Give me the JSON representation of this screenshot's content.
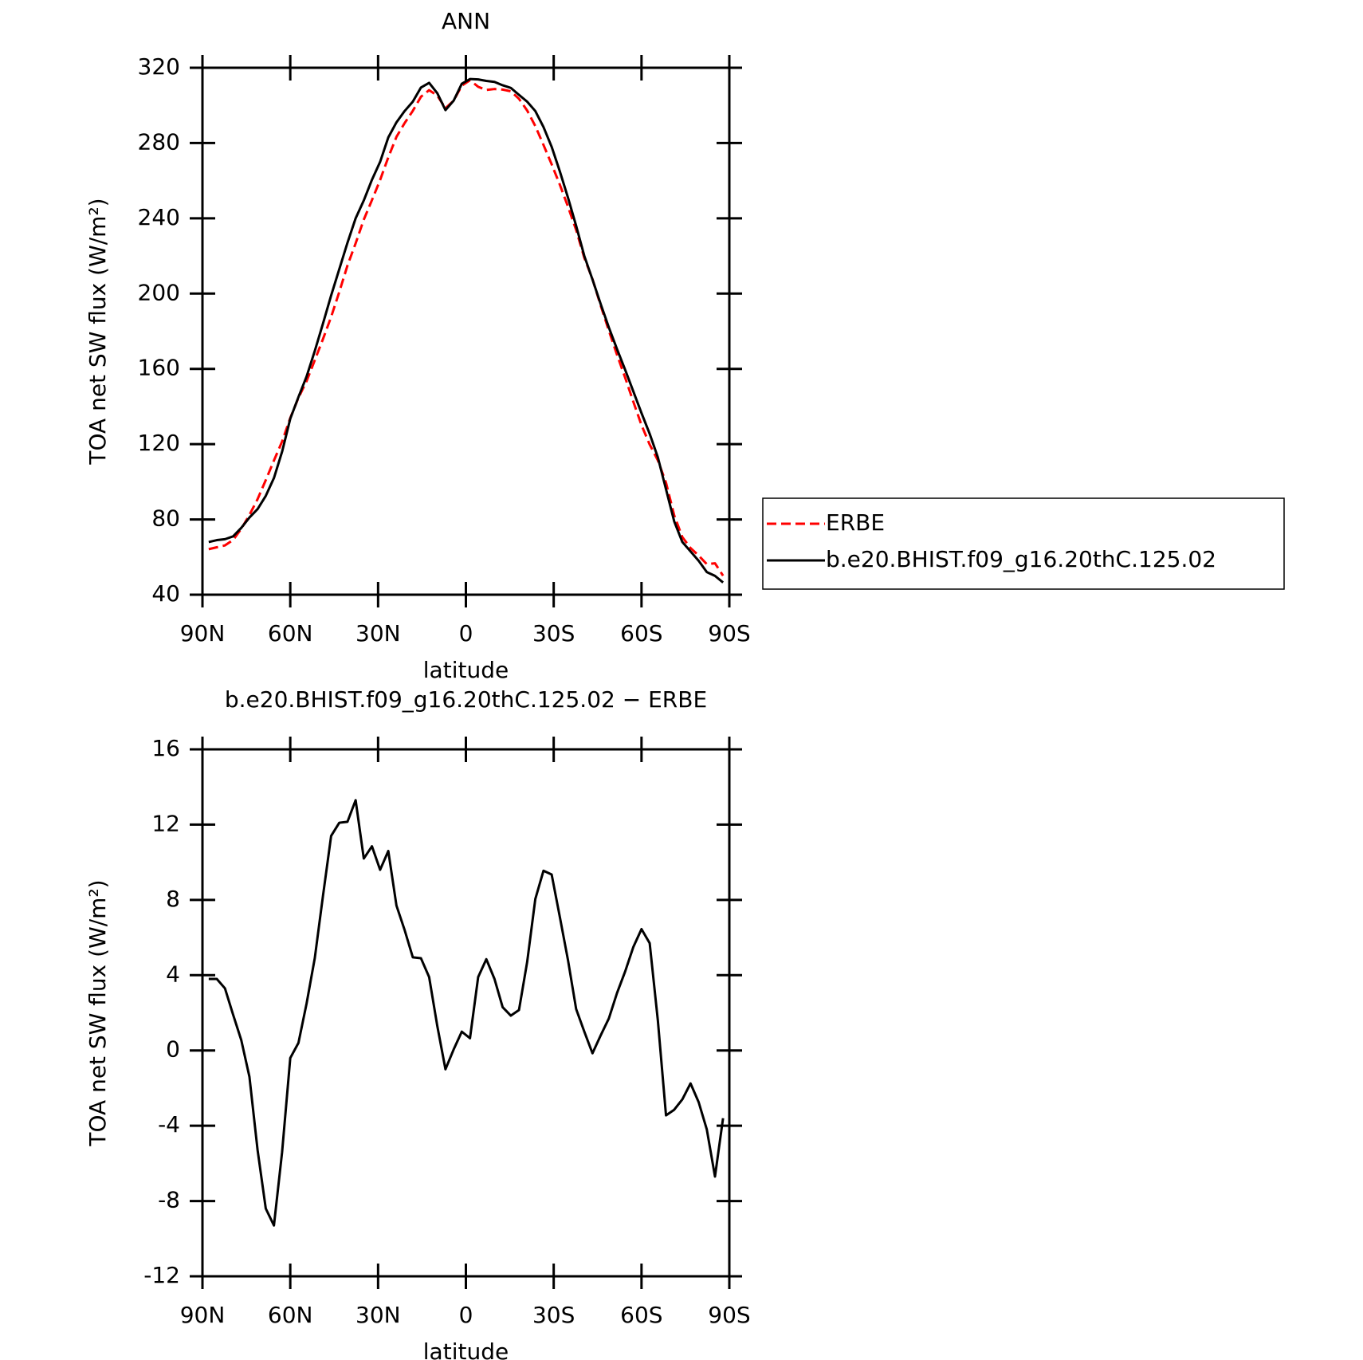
{
  "chart_data": [
    {
      "type": "line",
      "title": "ANN",
      "xlabel": "latitude",
      "ylabel": "TOA net SW flux (W/m²)",
      "x": [
        87.86,
        85.1,
        82.31,
        79.53,
        76.74,
        73.95,
        71.16,
        68.37,
        65.58,
        62.79,
        60,
        57.21,
        54.42,
        51.63,
        48.84,
        46.04,
        43.25,
        40.46,
        37.67,
        34.88,
        32.09,
        29.3,
        26.51,
        23.72,
        20.93,
        18.14,
        15.35,
        12.56,
        9.77,
        6.98,
        4.19,
        1.4,
        -1.4,
        -4.19,
        -6.98,
        -9.77,
        -12.56,
        -15.35,
        -18.14,
        -20.93,
        -23.72,
        -26.51,
        -29.3,
        -32.09,
        -34.88,
        -37.67,
        -40.46,
        -43.25,
        -46.04,
        -48.84,
        -51.63,
        -54.42,
        -57.21,
        -60,
        -62.79,
        -65.58,
        -68.37,
        -71.16,
        -73.95,
        -76.74,
        -79.53,
        -82.31,
        -85.1,
        -87.86
      ],
      "series": [
        {
          "name": "ERBE",
          "color": "#ff0000",
          "dash": "dashed",
          "values": [
            64.2,
            65.2,
            66.2,
            69.1,
            75,
            82.4,
            90.8,
            100.9,
            111.3,
            121.4,
            133.9,
            144.6,
            153.5,
            164.6,
            175.8,
            187.6,
            200.9,
            214.9,
            226.7,
            239.3,
            249.7,
            260.4,
            272.4,
            283.3,
            290.6,
            297.1,
            304.6,
            308.1,
            305.2,
            298.5,
            302.5,
            310.5,
            313.4,
            309.9,
            308.2,
            308.7,
            308.4,
            307.5,
            303.5,
            297.3,
            289,
            279,
            268.7,
            257.9,
            246.2,
            233.8,
            219,
            207.7,
            193.7,
            180.3,
            167.5,
            155.3,
            142.5,
            130.1,
            119.8,
            111.4,
            99.5,
            82.2,
            70.6,
            64.8,
            60.8,
            56.2,
            56.7,
            50.1
          ]
        },
        {
          "name": "b.e20.BHIST.f09_g16.20thC.125.02",
          "color": "#000000",
          "dash": "solid",
          "values": [
            68,
            69,
            69.5,
            71,
            75.5,
            81,
            85.5,
            92.5,
            102,
            116,
            133.5,
            145,
            156,
            169.5,
            184,
            199,
            213,
            227,
            240,
            249.5,
            260.5,
            270,
            283,
            291,
            297,
            302,
            309.5,
            312,
            306.5,
            297.5,
            302.5,
            311.5,
            314,
            313.8,
            313,
            312.5,
            310.7,
            309.3,
            305.6,
            302,
            297,
            288.5,
            278,
            265,
            251,
            236,
            220,
            207.5,
            194.5,
            182,
            170.5,
            159.5,
            148,
            136.5,
            125.5,
            113,
            96,
            79,
            68,
            63,
            58,
            52,
            50,
            46.5
          ]
        }
      ],
      "xlim": [
        90,
        -90
      ],
      "xticks": [
        {
          "value": 90,
          "label": "90N"
        },
        {
          "value": 60,
          "label": "60N"
        },
        {
          "value": 30,
          "label": "30N"
        },
        0,
        {
          "value": -30,
          "label": "30S"
        },
        {
          "value": -60,
          "label": "60S"
        },
        {
          "value": -90,
          "label": "90S"
        }
      ],
      "ylim": [
        40,
        320
      ],
      "yticks": [
        40,
        80,
        120,
        160,
        200,
        240,
        280,
        320
      ],
      "grid": false,
      "legend": "right"
    },
    {
      "type": "line",
      "title": "b.e20.BHIST.f09_g16.20thC.125.02 − ERBE",
      "xlabel": "latitude",
      "ylabel": "TOA net SW flux (W/m²)",
      "x": [
        87.86,
        85.1,
        82.31,
        79.53,
        76.74,
        73.95,
        71.16,
        68.37,
        65.58,
        62.79,
        60,
        57.21,
        54.42,
        51.63,
        48.84,
        46.04,
        43.25,
        40.46,
        37.67,
        34.88,
        32.09,
        29.3,
        26.51,
        23.72,
        20.93,
        18.14,
        15.35,
        12.56,
        9.77,
        6.98,
        4.19,
        1.4,
        -1.4,
        -4.19,
        -6.98,
        -9.77,
        -12.56,
        -15.35,
        -18.14,
        -20.93,
        -23.72,
        -26.51,
        -29.3,
        -32.09,
        -34.88,
        -37.67,
        -40.46,
        -43.25,
        -46.04,
        -48.84,
        -51.63,
        -54.42,
        -57.21,
        -60,
        -62.79,
        -65.58,
        -68.37,
        -71.16,
        -73.95,
        -76.74,
        -79.53,
        -82.31,
        -85.1,
        -87.86
      ],
      "series": [
        {
          "color": "#000000",
          "dash": "solid",
          "values": [
            3.8,
            3.8,
            3.3,
            1.9,
            0.55,
            -1.4,
            -5.3,
            -8.4,
            -9.3,
            -5.4,
            -0.4,
            0.4,
            2.5,
            4.9,
            8.2,
            11.4,
            12.1,
            12.15,
            13.3,
            10.2,
            10.85,
            9.6,
            10.6,
            7.7,
            6.4,
            4.95,
            4.9,
            3.9,
            1.3,
            -1,
            0.05,
            1,
            0.65,
            3.9,
            4.85,
            3.8,
            2.3,
            1.85,
            2.15,
            4.7,
            8.05,
            9.55,
            9.35,
            7.1,
            4.8,
            2.2,
            1,
            -0.15,
            0.8,
            1.7,
            3.05,
            4.2,
            5.5,
            6.45,
            5.7,
            1.6,
            -3.45,
            -3.15,
            -2.6,
            -1.75,
            -2.75,
            -4.2,
            -6.7,
            -3.6
          ]
        }
      ],
      "xlim": [
        90,
        -90
      ],
      "xticks": [
        {
          "value": 90,
          "label": "90N"
        },
        {
          "value": 60,
          "label": "60N"
        },
        {
          "value": 30,
          "label": "30N"
        },
        0,
        {
          "value": -30,
          "label": "30S"
        },
        {
          "value": -60,
          "label": "60S"
        },
        {
          "value": -90,
          "label": "90S"
        }
      ],
      "ylim": [
        -12,
        16
      ],
      "yticks": [
        -12,
        -8,
        -4,
        0,
        4,
        8,
        12,
        16
      ],
      "grid": false
    }
  ]
}
